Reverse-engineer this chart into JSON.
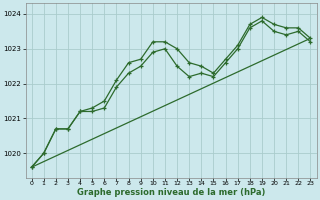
{
  "bg_color": "#cce8ec",
  "grid_color": "#aacccc",
  "line_color": "#2d6b2d",
  "title": "Graphe pression niveau de la mer (hPa)",
  "xlim": [
    -0.5,
    23.5
  ],
  "ylim": [
    1019.3,
    1024.3
  ],
  "yticks": [
    1020,
    1021,
    1022,
    1023,
    1024
  ],
  "xticks": [
    0,
    1,
    2,
    3,
    4,
    5,
    6,
    7,
    8,
    9,
    10,
    11,
    12,
    13,
    14,
    15,
    16,
    17,
    18,
    19,
    20,
    21,
    22,
    23
  ],
  "series1_x": [
    0,
    1,
    2,
    3,
    4,
    5,
    6,
    7,
    8,
    9,
    10,
    11,
    12,
    13,
    14,
    15,
    16,
    17,
    18,
    19,
    20,
    21,
    22,
    23
  ],
  "series1_y": [
    1019.6,
    1020.0,
    1020.7,
    1020.7,
    1021.2,
    1021.3,
    1021.5,
    1022.1,
    1022.6,
    1022.7,
    1023.2,
    1023.2,
    1023.0,
    1022.6,
    1022.5,
    1022.3,
    1022.7,
    1023.1,
    1023.7,
    1023.9,
    1023.7,
    1023.6,
    1023.6,
    1023.3
  ],
  "series2_x": [
    0,
    1,
    2,
    3,
    4,
    5,
    6,
    7,
    8,
    9,
    10,
    11,
    12,
    13,
    14,
    15,
    16,
    17,
    18,
    19,
    20,
    21,
    22,
    23
  ],
  "series2_y": [
    1019.6,
    1020.0,
    1020.7,
    1020.7,
    1021.2,
    1021.2,
    1021.3,
    1021.9,
    1022.3,
    1022.5,
    1022.9,
    1023.0,
    1022.5,
    1022.2,
    1022.3,
    1022.2,
    1022.6,
    1023.0,
    1023.6,
    1023.8,
    1023.5,
    1023.4,
    1023.5,
    1023.2
  ],
  "series3_x": [
    0,
    23
  ],
  "series3_y": [
    1019.6,
    1023.3
  ]
}
